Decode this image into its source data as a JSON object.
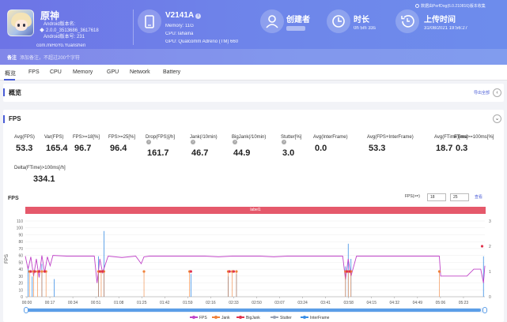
{
  "app": {
    "name": "原神",
    "meta_lines": [
      "Android版本名: ",
      "2.0.0_3513686_3617618",
      "Android版本号: 231"
    ],
    "package": "com.miHoYo.Yuanshen"
  },
  "device": {
    "name": "V2141A",
    "memory": "Memory: 11G",
    "cpu": "CPU: lahaina",
    "gpu": "GPU: Qualcomm Adreno (TM) 660"
  },
  "creator": {
    "label": "创建者"
  },
  "duration": {
    "label": "时长",
    "value": "0h 5m 33s"
  },
  "upload": {
    "label": "上传时间",
    "value": "31/08/2021 19:56:27"
  },
  "top_note": "数据由PerfDog(6.0.210816)版本收集",
  "note": {
    "label": "备注",
    "placeholder": "添加备注，不超过200个字符"
  },
  "tabs": [
    "概览",
    "FPS",
    "CPU",
    "Memory",
    "GPU",
    "Network",
    "Battery"
  ],
  "overview": {
    "title": "概览",
    "export": "导出全部"
  },
  "fps_section": {
    "title": "FPS",
    "metrics": [
      {
        "label": "Avg(FPS)",
        "value": "53.3"
      },
      {
        "label": "Var(FPS)",
        "value": "165.4"
      },
      {
        "label": "FPS>=18[%]",
        "value": "96.7"
      },
      {
        "label": "FPS>=25[%]",
        "value": "96.4"
      },
      {
        "label": "Drop(FPS)[/h]",
        "value": "161.7"
      },
      {
        "label": "Jank(/10min)",
        "value": "46.7"
      },
      {
        "label": "BigJank(/10min)",
        "value": "44.9"
      },
      {
        "label": "Stutter[%]",
        "value": "3.0"
      },
      {
        "label": "Avg(InterFrame)",
        "value": "0.0"
      },
      {
        "label": "Avg(FPS+InterFrame)",
        "value": "53.3"
      },
      {
        "label": "Avg(FTime)[ms]",
        "value": "18.7"
      },
      {
        "label": "FTime>=100ms[%]",
        "value": "0.3"
      }
    ],
    "metric_extra": {
      "label": "Delta(FTime)>100ms[/h]",
      "value": "334.1"
    }
  },
  "chart": {
    "title": "FPS",
    "filter_label": "FPS(>=)",
    "filter_values": [
      "18",
      "25"
    ],
    "filter_button": "查看",
    "band_label": "label1"
  },
  "chart_data": {
    "type": "line",
    "ylabel": "FPS",
    "ylim": [
      0,
      110
    ],
    "yticks": [
      0,
      10,
      20,
      30,
      40,
      50,
      60,
      70,
      80,
      90,
      100,
      110
    ],
    "y2lim": [
      0,
      3
    ],
    "y2ticks": [
      0,
      1,
      2,
      3
    ],
    "x_ticks": [
      "00:00",
      "00:17",
      "00:34",
      "00:51",
      "01:08",
      "01:25",
      "01:42",
      "01:59",
      "02:16",
      "02:33",
      "02:50",
      "03:07",
      "03:24",
      "03:41",
      "03:58",
      "04:15",
      "04:32",
      "04:49",
      "05:06",
      "05:23"
    ],
    "series": [
      {
        "name": "FPS",
        "color": "#c044c8",
        "x": [
          0,
          2,
          4,
          6,
          8,
          10,
          12,
          14,
          16,
          18,
          20,
          30,
          40,
          50,
          52,
          54,
          56,
          60,
          70,
          80,
          84,
          86,
          90,
          100,
          110,
          120,
          130,
          140,
          150,
          160,
          170,
          180,
          190,
          200,
          210,
          220,
          230,
          232,
          234,
          236,
          240,
          250,
          260,
          270,
          280,
          290,
          300,
          301,
          305,
          310,
          315,
          320,
          325,
          330,
          332,
          333
        ],
        "y": [
          59,
          40,
          58,
          30,
          55,
          28,
          60,
          35,
          58,
          45,
          60,
          59,
          59,
          59,
          20,
          55,
          35,
          59,
          57,
          59,
          48,
          58,
          59,
          59,
          59,
          59,
          59,
          58,
          59,
          59,
          59,
          58,
          59,
          59,
          59,
          59,
          59,
          25,
          55,
          30,
          59,
          59,
          59,
          59,
          59,
          59,
          59,
          30,
          30,
          30,
          30,
          30,
          40,
          40,
          20,
          45
        ]
      },
      {
        "name": "Jank",
        "color": "#f0823a",
        "x": [
          3,
          6,
          9,
          12,
          15,
          53,
          55,
          57,
          86,
          119,
          147,
          150,
          153,
          232,
          234,
          236,
          300
        ],
        "y": [
          1,
          1,
          1,
          1,
          1,
          1,
          1,
          1,
          1,
          1,
          1,
          1,
          1,
          1,
          1,
          1,
          1
        ]
      },
      {
        "name": "BigJank",
        "color": "#e0334d",
        "x": [
          4,
          7,
          10,
          14,
          54,
          56,
          120,
          148,
          151,
          233,
          235,
          331
        ],
        "y": [
          1,
          1,
          1,
          1,
          1,
          1,
          1,
          1,
          1,
          1,
          1,
          2
        ]
      },
      {
        "name": "Stutter",
        "color": "#9aa3b5",
        "x": [],
        "y": []
      },
      {
        "name": "InterFrame",
        "color": "#3a8ee6",
        "x": [
          2,
          5,
          12,
          21,
          53,
          57,
          120,
          147,
          153,
          232,
          234,
          236,
          332
        ],
        "y": [
          1.2,
          0.8,
          1.3,
          0.7,
          1.6,
          2.6,
          0.9,
          0.8,
          0.9,
          1.2,
          2.1,
          1.5,
          1.6
        ]
      }
    ]
  },
  "colors": {
    "accent": "#4a5dd6",
    "header_start": "#6d74e6",
    "header_end": "#6d8cec",
    "band": "#e5596b"
  }
}
